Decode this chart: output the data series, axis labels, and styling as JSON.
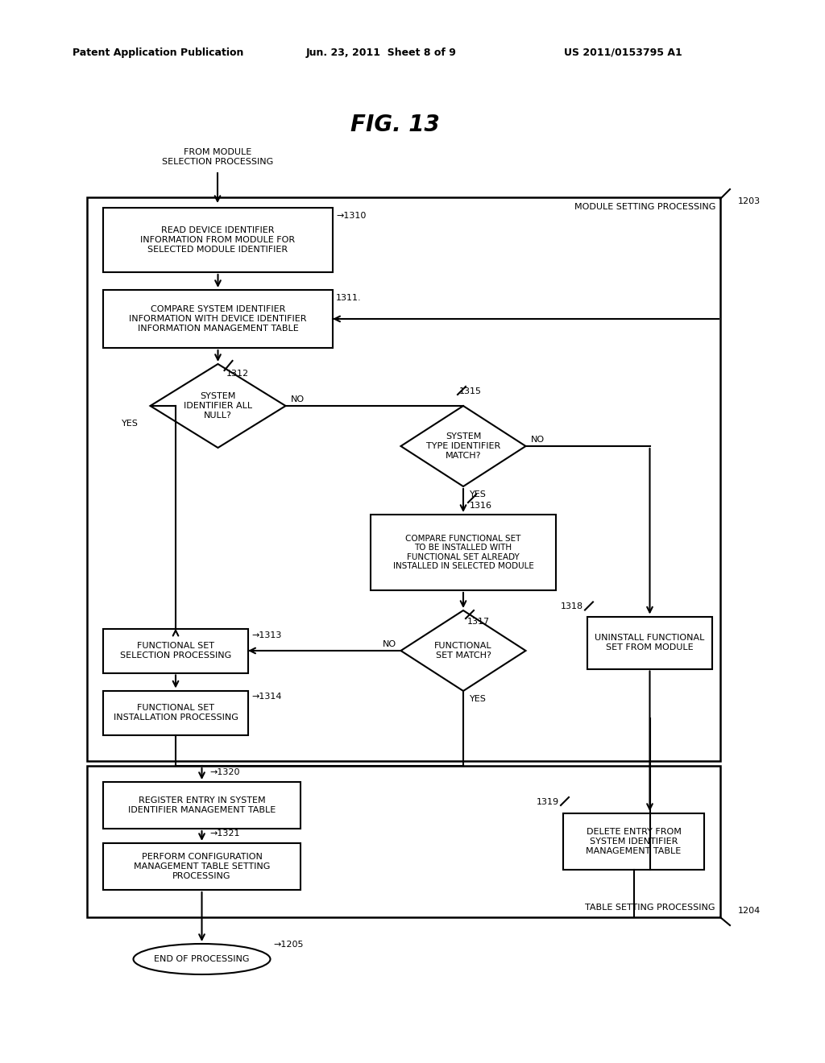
{
  "title": "FIG. 13",
  "header_left": "Patent Application Publication",
  "header_center": "Jun. 23, 2011  Sheet 8 of 9",
  "header_right": "US 2011/0153795 A1",
  "bg_color": "#ffffff",
  "fig_width": 10.24,
  "fig_height": 13.2
}
